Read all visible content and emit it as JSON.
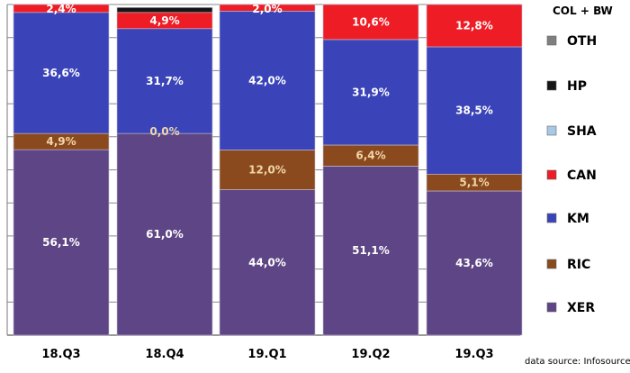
{
  "chart_data": {
    "type": "bar",
    "stacked": true,
    "categories": [
      "18.Q3",
      "18.Q4",
      "19.Q1",
      "19.Q2",
      "19.Q3"
    ],
    "ylim": [
      0,
      100
    ],
    "grid": true,
    "legend_title": "COL + BW",
    "legend_placement": "right",
    "source_note": "data source: Infosource",
    "series": [
      {
        "name": "XER",
        "color": "#5E4585",
        "values": [
          56.1,
          61.0,
          44.0,
          51.1,
          43.6
        ],
        "labels": [
          "56,1%",
          "61,0%",
          "44,0%",
          "51,1%",
          "43,6%"
        ]
      },
      {
        "name": "RIC",
        "color": "#8B4A1E",
        "values": [
          4.9,
          0.0,
          12.0,
          6.4,
          5.1
        ],
        "labels": [
          "4,9%",
          "0,0%",
          "12,0%",
          "6,4%",
          "5,1%"
        ]
      },
      {
        "name": "KM",
        "color": "#3A44B8",
        "values": [
          36.6,
          31.7,
          42.0,
          31.9,
          38.5
        ],
        "labels": [
          "36,6%",
          "31,7%",
          "42,0%",
          "31,9%",
          "38,5%"
        ]
      },
      {
        "name": "CAN",
        "color": "#EE1C24",
        "values": [
          2.4,
          4.9,
          2.0,
          10.6,
          12.8
        ],
        "labels": [
          "2,4%",
          "4,9%",
          "2,0%",
          "10,6%",
          "12,8%"
        ]
      },
      {
        "name": "SHA",
        "color": "#A8C8E6",
        "values": [
          0,
          0,
          0,
          0,
          0
        ],
        "labels": [
          "",
          "",
          "",
          "",
          ""
        ]
      },
      {
        "name": "HP",
        "color": "#151515",
        "values": [
          0,
          1.5,
          0,
          0,
          0
        ],
        "labels": [
          "",
          "",
          "",
          "",
          ""
        ]
      },
      {
        "name": "OTH",
        "color": "#7F7F7F",
        "values": [
          0,
          0,
          0,
          0,
          0
        ],
        "labels": [
          "",
          "",
          "",
          "",
          ""
        ]
      }
    ],
    "legend_order": [
      "OTH",
      "HP",
      "SHA",
      "CAN",
      "KM",
      "RIC",
      "XER"
    ]
  }
}
